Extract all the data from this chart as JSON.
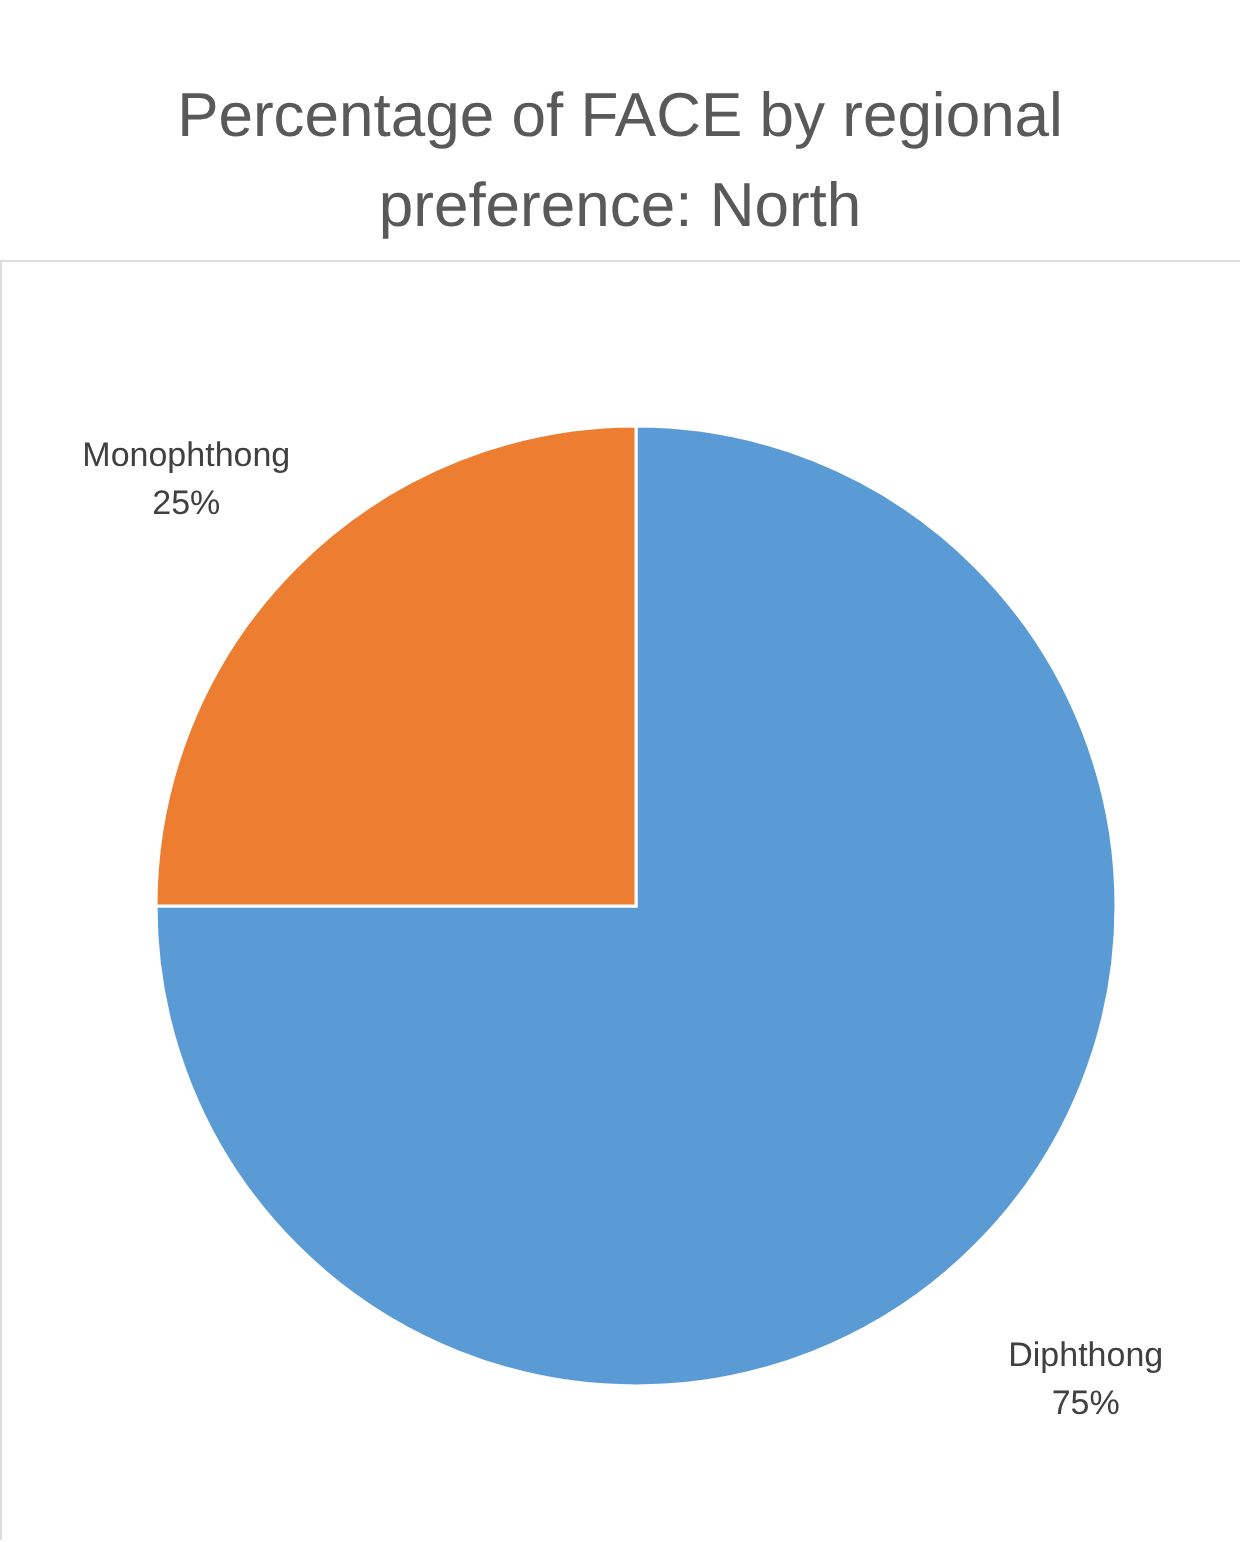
{
  "chart_data": {
    "type": "pie",
    "title": "Percentage of FACE by regional preference: North",
    "categories": [
      "Diphthong",
      "Monophthong"
    ],
    "values": [
      75,
      25
    ],
    "colors": [
      "#5b9bd5",
      "#ed7d31"
    ],
    "value_labels": [
      "75%",
      "25%"
    ],
    "legend": false
  }
}
